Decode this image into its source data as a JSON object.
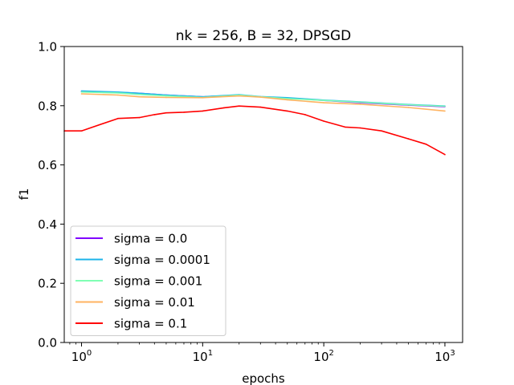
{
  "chart_data": {
    "type": "line",
    "title": "nk = 256, B = 32, DPSGD",
    "xlabel": "epochs",
    "ylabel": "f1",
    "x_scale": "log",
    "xlim": [
      0.72,
      1400
    ],
    "ylim": [
      0.0,
      1.0
    ],
    "grid": false,
    "legend_position": "lower-left",
    "x_ticks": [
      {
        "value": 1,
        "base": "10",
        "exp": "0"
      },
      {
        "value": 10,
        "base": "10",
        "exp": "1"
      },
      {
        "value": 100,
        "base": "10",
        "exp": "2"
      },
      {
        "value": 1000,
        "base": "10",
        "exp": "3"
      }
    ],
    "y_ticks": [
      {
        "value": 0.0,
        "label": "0.0"
      },
      {
        "value": 0.2,
        "label": "0.2"
      },
      {
        "value": 0.4,
        "label": "0.4"
      },
      {
        "value": 0.6,
        "label": "0.6"
      },
      {
        "value": 0.8,
        "label": "0.8"
      },
      {
        "value": 1.0,
        "label": "1.0"
      }
    ],
    "series": [
      {
        "name": "sigma = 0.0",
        "color": "#8000ff",
        "x": [
          1,
          2,
          3,
          5,
          10,
          20,
          30,
          50,
          100,
          200,
          500,
          1000
        ],
        "y": [
          0.848,
          0.845,
          0.842,
          0.836,
          0.83,
          0.836,
          0.83,
          0.826,
          0.818,
          0.81,
          0.802,
          0.797
        ]
      },
      {
        "name": "sigma = 0.0001",
        "color": "#1cb4ea",
        "x": [
          1,
          2,
          3,
          5,
          10,
          20,
          30,
          50,
          100,
          200,
          500,
          1000
        ],
        "y": [
          0.85,
          0.846,
          0.842,
          0.836,
          0.83,
          0.837,
          0.831,
          0.827,
          0.819,
          0.813,
          0.804,
          0.799
        ]
      },
      {
        "name": "sigma = 0.001",
        "color": "#80ffb4",
        "x": [
          1,
          2,
          3,
          5,
          10,
          20,
          30,
          50,
          100,
          200,
          500,
          1000
        ],
        "y": [
          0.846,
          0.843,
          0.838,
          0.833,
          0.828,
          0.836,
          0.83,
          0.824,
          0.818,
          0.812,
          0.803,
          0.798
        ]
      },
      {
        "name": "sigma = 0.01",
        "color": "#ffb360",
        "x": [
          1,
          2,
          3,
          5,
          10,
          20,
          30,
          50,
          100,
          200,
          500,
          1000
        ],
        "y": [
          0.84,
          0.836,
          0.83,
          0.828,
          0.827,
          0.833,
          0.829,
          0.82,
          0.81,
          0.805,
          0.794,
          0.782
        ]
      },
      {
        "name": "sigma = 0.1",
        "color": "#ff0000",
        "x": [
          0.72,
          1,
          2,
          3,
          4,
          5,
          7,
          10,
          15,
          20,
          30,
          50,
          70,
          100,
          150,
          200,
          300,
          500,
          700,
          1000
        ],
        "y": [
          0.715,
          0.715,
          0.757,
          0.76,
          0.77,
          0.776,
          0.778,
          0.782,
          0.793,
          0.799,
          0.795,
          0.782,
          0.77,
          0.748,
          0.728,
          0.725,
          0.715,
          0.688,
          0.67,
          0.635
        ]
      }
    ]
  }
}
